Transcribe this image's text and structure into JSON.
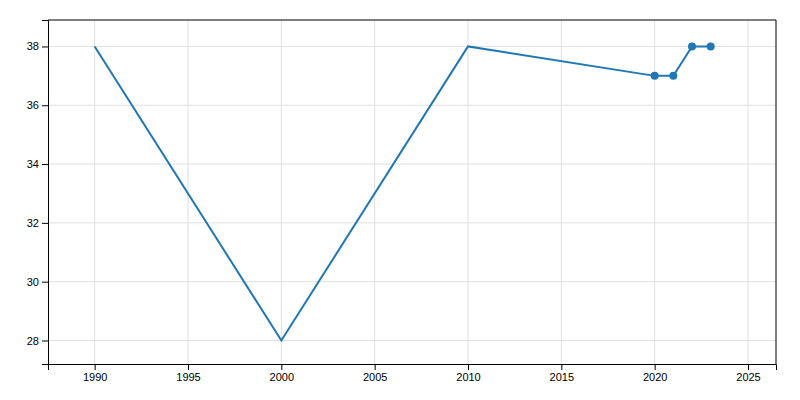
{
  "chart_data": {
    "type": "line",
    "x": [
      1990,
      2000,
      2010,
      2020,
      2021,
      2022,
      2023
    ],
    "series": [
      {
        "type": "line",
        "values": [
          38,
          28,
          38,
          37,
          37,
          38,
          38
        ]
      },
      {
        "type": "scatter",
        "marker": "circle",
        "values": [
          null,
          null,
          null,
          37,
          37,
          38,
          38
        ]
      }
    ],
    "xlim": [
      1987.5,
      2026.5
    ],
    "ylim": [
      27.2,
      38.9
    ],
    "xticks": [
      1990,
      1995,
      2000,
      2005,
      2010,
      2015,
      2020,
      2025
    ],
    "yticks": [
      28,
      30,
      32,
      34,
      36,
      38
    ],
    "grid": true
  }
}
